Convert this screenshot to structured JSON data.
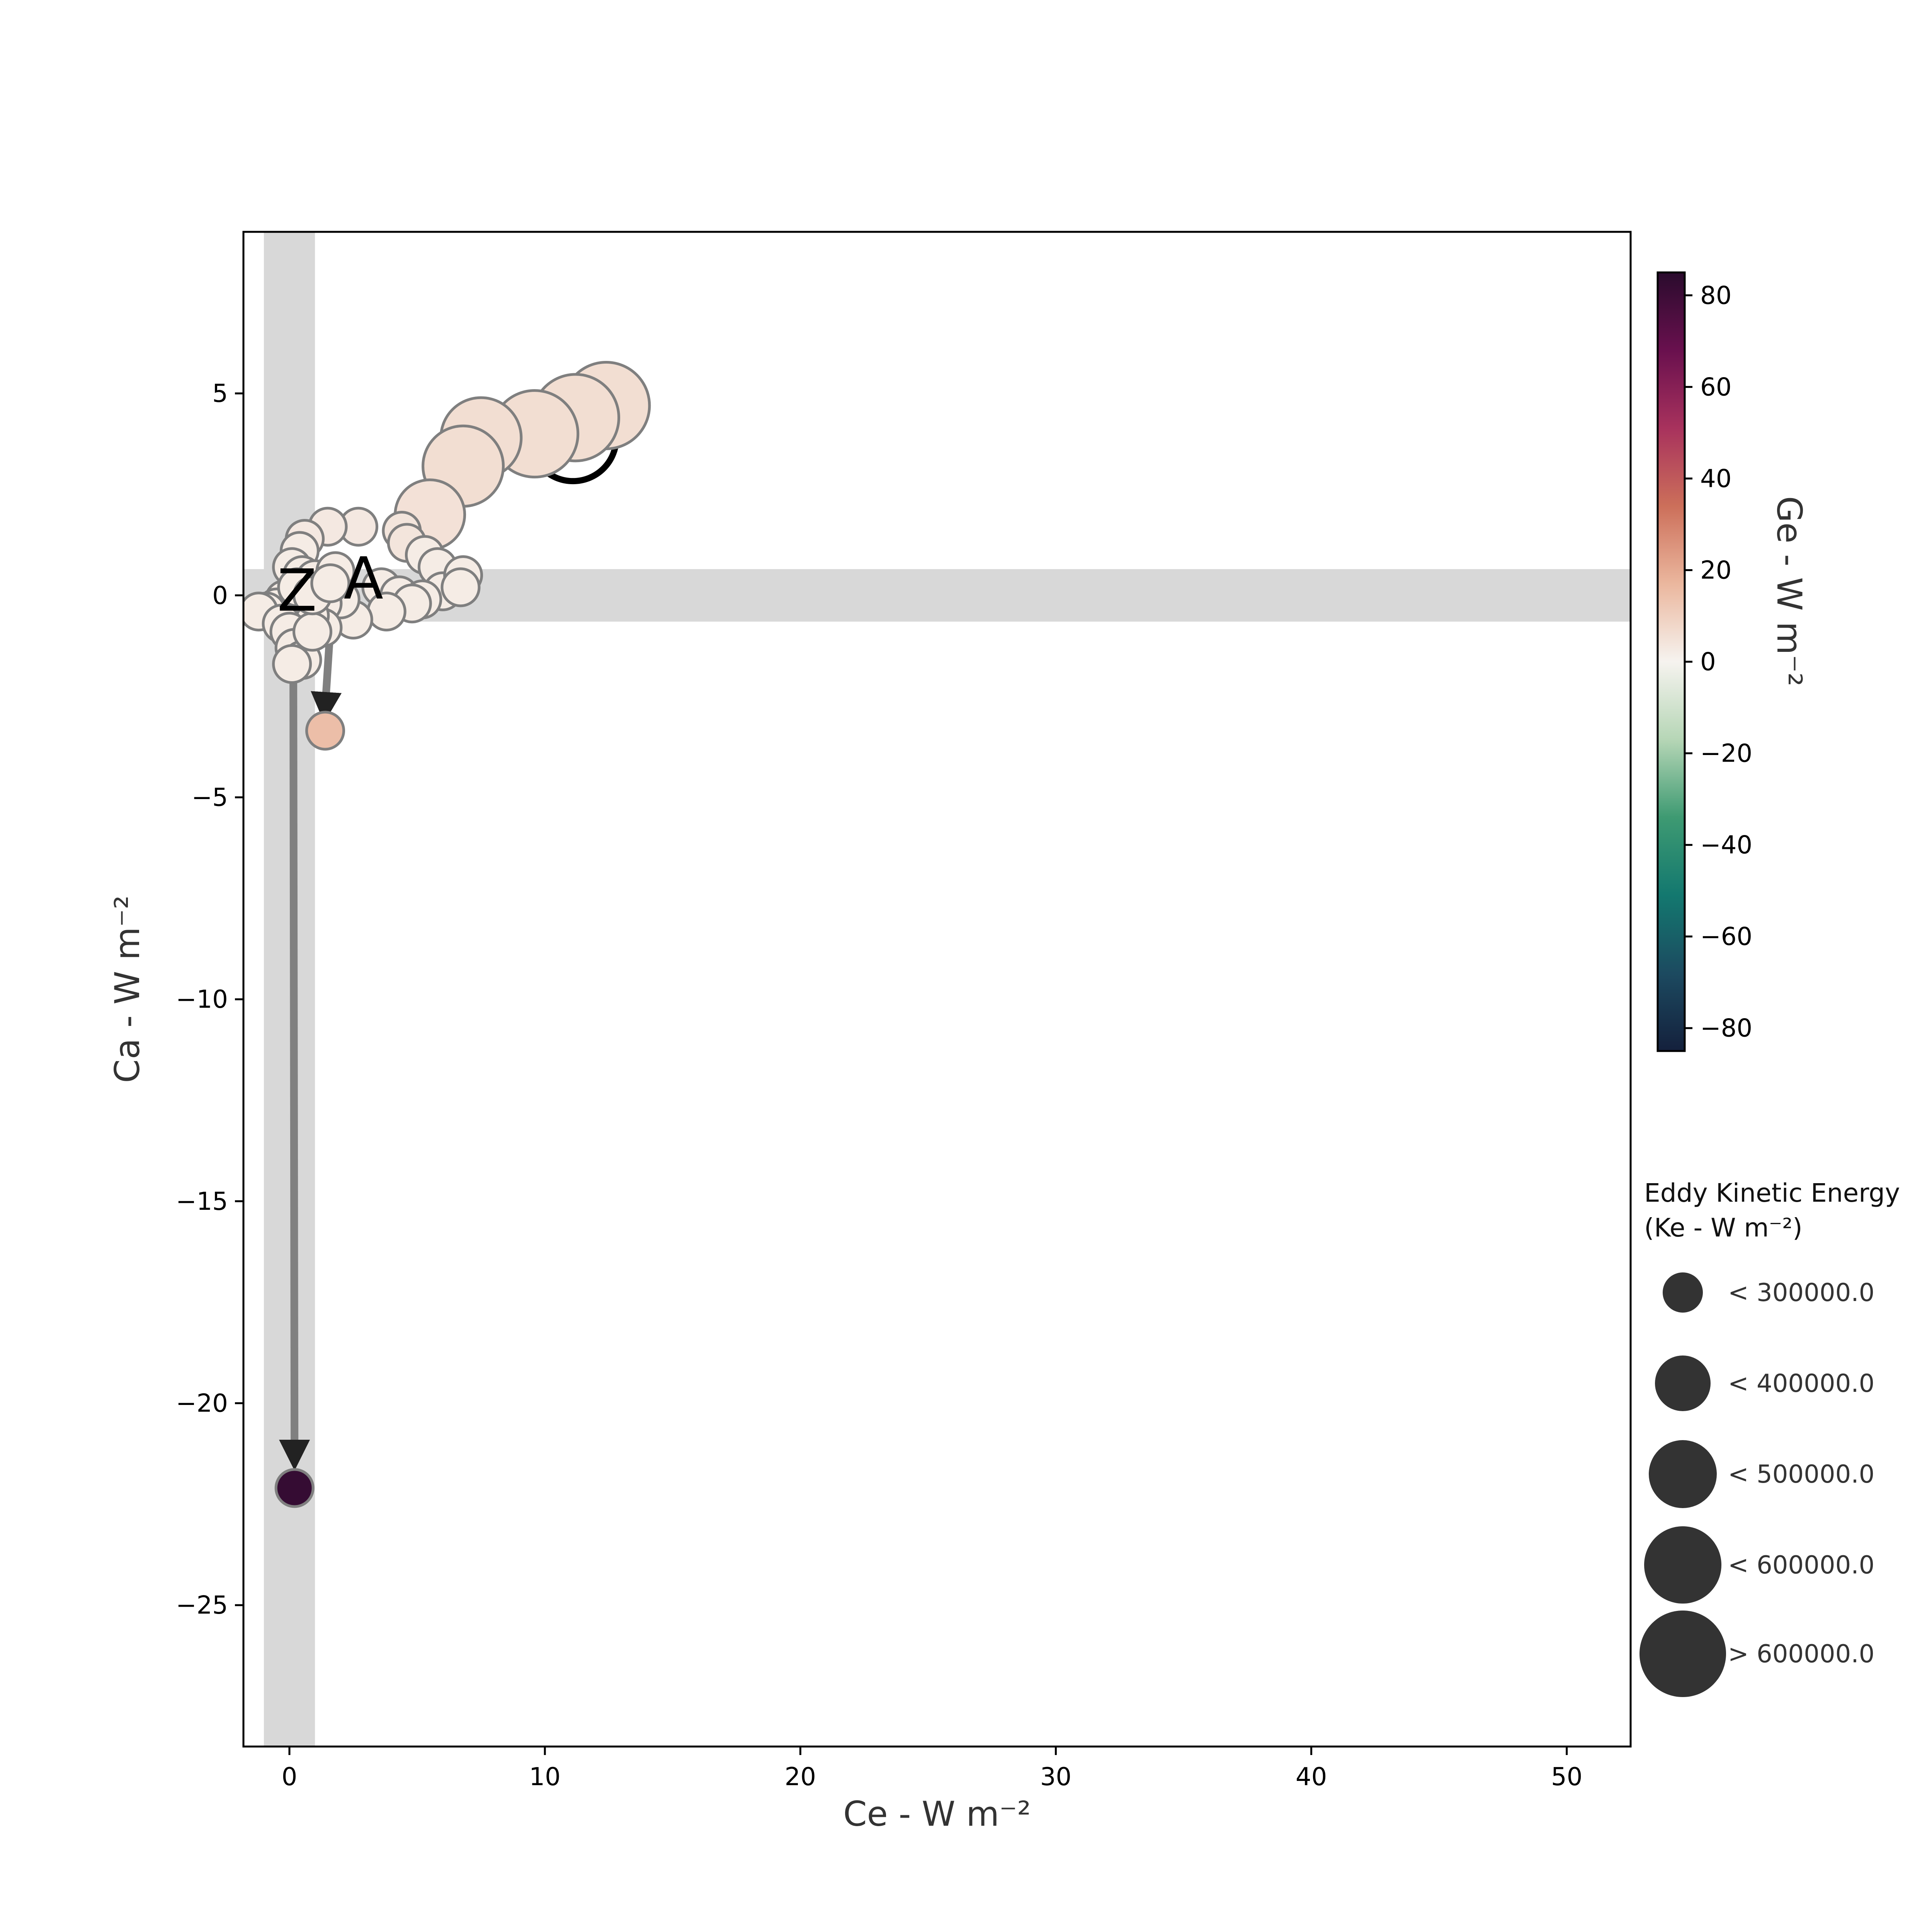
{
  "chart_data": {
    "type": "scatter",
    "xlabel": "Ce - W m⁻²",
    "ylabel": "Ca - W m⁻²",
    "xlim": [
      -1.8,
      52.5
    ],
    "ylim": [
      -28.5,
      9.0
    ],
    "xticks": [
      0,
      10,
      20,
      30,
      40,
      50
    ],
    "yticks": [
      -25,
      -20,
      -15,
      -10,
      -5,
      0,
      5
    ],
    "grid": false,
    "shaded_bands": {
      "vertical": [
        -1.0,
        1.0
      ],
      "horizontal": [
        -0.65,
        0.65
      ]
    },
    "colorbar": {
      "label": "Ge - W m⁻²",
      "range": [
        -85,
        85
      ],
      "ticks": [
        -80,
        -60,
        -40,
        -20,
        0,
        20,
        40,
        60,
        80
      ],
      "colors": [
        "#14203c",
        "#1c4a60",
        "#13786f",
        "#3e9a72",
        "#b6d6b6",
        "#f6f3ef",
        "#ebb79e",
        "#cc6f5a",
        "#a8325d",
        "#69104e",
        "#2a0b2d"
      ]
    },
    "size_legend": {
      "title_line1": "Eddy Kinetic Energy",
      "title_line2": "(Ke - W m⁻²)",
      "entries": [
        {
          "label": "< 300000.0",
          "size": 300000
        },
        {
          "label": "< 400000.0",
          "size": 400000
        },
        {
          "label": "< 500000.0",
          "size": 500000
        },
        {
          "label": "< 600000.0",
          "size": 600000
        },
        {
          "label": "> 600000.0",
          "size": 700000
        }
      ]
    },
    "annotations": [
      {
        "text": "Z",
        "x": 0.3,
        "y": 0.1
      },
      {
        "text": "A",
        "x": 2.9,
        "y": 0.4
      }
    ],
    "trajectory_end": {
      "x": 0.2,
      "y": -22.1,
      "ge": 82
    },
    "trajectory_start": {
      "x": 1.4,
      "y": -3.35,
      "ge": 15
    },
    "points": [
      {
        "x": 12.4,
        "y": 4.7,
        "ge": 6,
        "ke": 700000
      },
      {
        "x": 11.2,
        "y": 4.4,
        "ge": 6,
        "ke": 700000
      },
      {
        "x": 9.6,
        "y": 4.0,
        "ge": 6,
        "ke": 700000
      },
      {
        "x": 7.5,
        "y": 3.9,
        "ge": 6,
        "ke": 600000
      },
      {
        "x": 6.8,
        "y": 3.2,
        "ge": 6,
        "ke": 600000
      },
      {
        "x": 5.5,
        "y": 2.0,
        "ge": 5,
        "ke": 500000
      },
      {
        "x": 4.4,
        "y": 1.6,
        "ge": 4,
        "ke": 300000
      },
      {
        "x": 4.6,
        "y": 1.3,
        "ge": 4,
        "ke": 300000
      },
      {
        "x": 2.7,
        "y": 1.7,
        "ge": 3,
        "ke": 300000
      },
      {
        "x": 1.5,
        "y": 1.7,
        "ge": 3,
        "ke": 300000
      },
      {
        "x": 0.6,
        "y": 1.4,
        "ge": 3,
        "ke": 300000
      },
      {
        "x": 0.4,
        "y": 1.1,
        "ge": 2,
        "ke": 300000
      },
      {
        "x": 0.1,
        "y": 0.7,
        "ge": 2,
        "ke": 300000
      },
      {
        "x": 0.5,
        "y": 0.5,
        "ge": 2,
        "ke": 300000
      },
      {
        "x": 1.0,
        "y": 0.4,
        "ge": 2,
        "ke": 300000
      },
      {
        "x": 1.8,
        "y": 0.6,
        "ge": 2,
        "ke": 300000
      },
      {
        "x": 3.6,
        "y": 0.2,
        "ge": 2,
        "ke": 300000
      },
      {
        "x": 4.3,
        "y": 0.0,
        "ge": 2,
        "ke": 300000
      },
      {
        "x": 5.3,
        "y": 1.0,
        "ge": 2,
        "ke": 300000
      },
      {
        "x": 5.8,
        "y": 0.7,
        "ge": 2,
        "ke": 300000
      },
      {
        "x": 6.0,
        "y": 0.1,
        "ge": 2,
        "ke": 300000
      },
      {
        "x": 6.8,
        "y": 0.5,
        "ge": 2,
        "ke": 300000
      },
      {
        "x": 6.7,
        "y": 0.2,
        "ge": 2,
        "ke": 300000
      },
      {
        "x": 5.2,
        "y": -0.1,
        "ge": 2,
        "ke": 300000
      },
      {
        "x": 4.8,
        "y": -0.2,
        "ge": 2,
        "ke": 300000
      },
      {
        "x": 3.8,
        "y": -0.4,
        "ge": 2,
        "ke": 300000
      },
      {
        "x": 2.5,
        "y": -0.6,
        "ge": 2,
        "ke": 300000
      },
      {
        "x": 2.0,
        "y": -0.1,
        "ge": 2,
        "ke": 300000
      },
      {
        "x": 1.3,
        "y": -0.2,
        "ge": 2,
        "ke": 300000
      },
      {
        "x": 1.3,
        "y": -0.8,
        "ge": 2,
        "ke": 300000
      },
      {
        "x": 0.8,
        "y": -0.5,
        "ge": 2,
        "ke": 300000
      },
      {
        "x": 0.4,
        "y": -0.3,
        "ge": 2,
        "ke": 300000
      },
      {
        "x": -0.2,
        "y": -0.1,
        "ge": 2,
        "ke": 300000
      },
      {
        "x": -0.5,
        "y": -0.3,
        "ge": 2,
        "ke": 300000
      },
      {
        "x": -0.9,
        "y": -0.4,
        "ge": 2,
        "ke": 300000
      },
      {
        "x": -1.2,
        "y": -0.4,
        "ge": 2,
        "ke": 300000
      },
      {
        "x": -0.3,
        "y": -0.7,
        "ge": 2,
        "ke": 300000
      },
      {
        "x": 0.0,
        "y": -0.9,
        "ge": 2,
        "ke": 300000
      },
      {
        "x": 0.2,
        "y": -1.3,
        "ge": 2,
        "ke": 300000
      },
      {
        "x": 0.5,
        "y": -1.6,
        "ge": 2,
        "ke": 300000
      },
      {
        "x": 0.1,
        "y": -1.7,
        "ge": 2,
        "ke": 300000
      },
      {
        "x": 0.9,
        "y": -0.9,
        "ge": 2,
        "ke": 300000
      },
      {
        "x": 0.3,
        "y": 0.2,
        "ge": 2,
        "ke": 300000
      },
      {
        "x": 0.9,
        "y": 0.0,
        "ge": 2,
        "ke": 300000
      },
      {
        "x": 1.6,
        "y": 0.3,
        "ge": 2,
        "ke": 300000
      }
    ]
  }
}
